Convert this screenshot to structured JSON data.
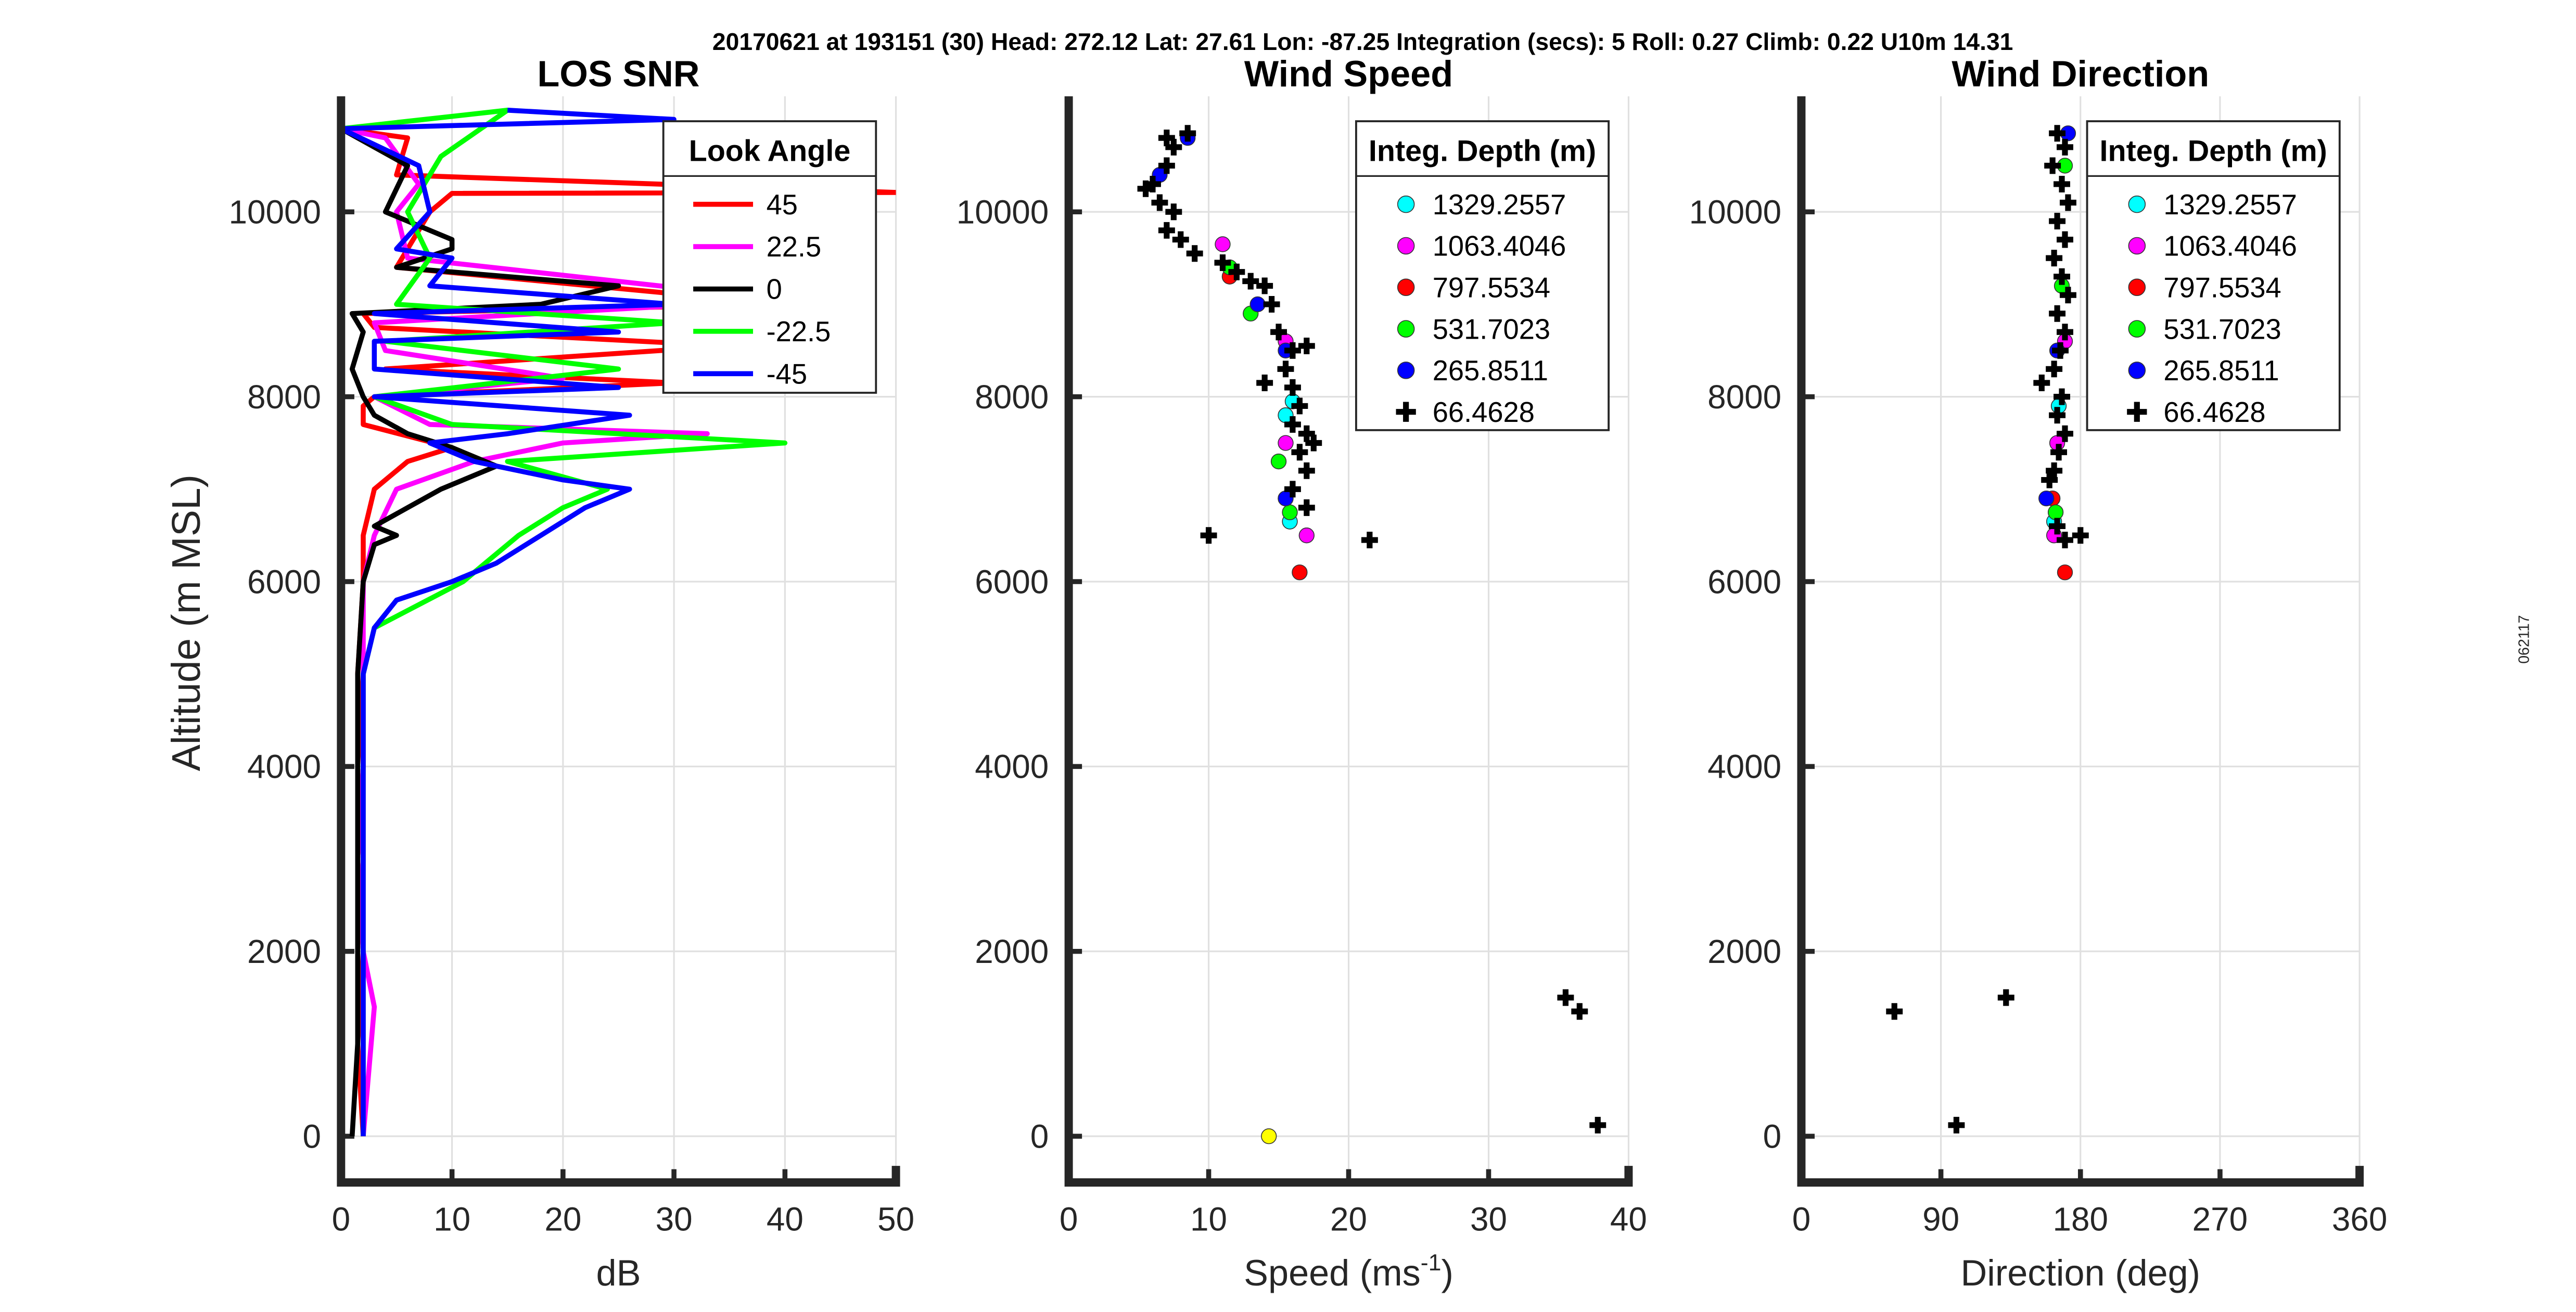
{
  "header": "20170621 at 193151 (30)  Head: 272.12  Lat: 27.61  Lon: -87.25  Integration (secs): 5  Roll: 0.27  Climb: 0.22  U10m 14.31",
  "side_label": "062117",
  "chart_data": [
    {
      "type": "line",
      "title": "LOS SNR",
      "xlabel": "dB",
      "ylabel": "Altitude (m MSL)",
      "xlim": [
        0,
        50
      ],
      "ylim": [
        -500,
        11250
      ],
      "xticks": [
        0,
        10,
        20,
        30,
        40,
        50
      ],
      "yticks": [
        0,
        2000,
        4000,
        6000,
        8000,
        10000
      ],
      "grid": true,
      "legend": {
        "title": "Look Angle",
        "placement": "top-right"
      },
      "series": [
        {
          "name": "45",
          "color": "#ff0000",
          "points": [
            [
              2,
              0
            ],
            [
              1.5,
              1000
            ],
            [
              2,
              2000
            ],
            [
              1.5,
              3000
            ],
            [
              2,
              4000
            ],
            [
              1.5,
              5000
            ],
            [
              2,
              6000
            ],
            [
              2,
              6500
            ],
            [
              3,
              7000
            ],
            [
              6,
              7300
            ],
            [
              10,
              7450
            ],
            [
              2,
              7700
            ],
            [
              2,
              7900
            ],
            [
              3,
              8000
            ],
            [
              30,
              8150
            ],
            [
              4,
              8300
            ],
            [
              35,
              8550
            ],
            [
              3,
              8750
            ],
            [
              2,
              8900
            ],
            [
              40,
              9000
            ],
            [
              5,
              9400
            ],
            [
              8,
              10000
            ],
            [
              10,
              10200
            ],
            [
              50,
              10210
            ],
            [
              5,
              10400
            ],
            [
              6,
              10800
            ],
            [
              0,
              10900
            ]
          ]
        },
        {
          "name": "22.5",
          "color": "#ff00ff",
          "points": [
            [
              2,
              0
            ],
            [
              3,
              1400
            ],
            [
              2,
              2000
            ],
            [
              1.5,
              3000
            ],
            [
              2,
              4000
            ],
            [
              2,
              5000
            ],
            [
              2,
              6000
            ],
            [
              3,
              6500
            ],
            [
              5,
              7000
            ],
            [
              12,
              7300
            ],
            [
              20,
              7500
            ],
            [
              33,
              7600
            ],
            [
              8,
              7700
            ],
            [
              3,
              8000
            ],
            [
              20,
              8200
            ],
            [
              4,
              8500
            ],
            [
              3,
              8800
            ],
            [
              40,
              9050
            ],
            [
              6,
              9500
            ],
            [
              5,
              10000
            ],
            [
              7,
              10300
            ],
            [
              4,
              10800
            ],
            [
              0,
              10900
            ]
          ]
        },
        {
          "name": "0",
          "color": "#000000",
          "points": [
            [
              1,
              0
            ],
            [
              1.5,
              1000
            ],
            [
              1.5,
              2000
            ],
            [
              1.5,
              3000
            ],
            [
              1.5,
              4000
            ],
            [
              1.5,
              5000
            ],
            [
              2,
              6000
            ],
            [
              3,
              6400
            ],
            [
              5,
              6500
            ],
            [
              3,
              6600
            ],
            [
              6,
              6800
            ],
            [
              9,
              7000
            ],
            [
              14,
              7250
            ],
            [
              10,
              7450
            ],
            [
              6,
              7600
            ],
            [
              3,
              7800
            ],
            [
              2,
              8000
            ],
            [
              1,
              8300
            ],
            [
              2,
              8700
            ],
            [
              1,
              8900
            ],
            [
              18,
              9000
            ],
            [
              25,
              9200
            ],
            [
              5,
              9400
            ],
            [
              10,
              9600
            ],
            [
              10,
              9700
            ],
            [
              4,
              10000
            ],
            [
              6,
              10500
            ],
            [
              0,
              10900
            ]
          ]
        },
        {
          "name": "-22.5",
          "color": "#00ff00",
          "points": [
            [
              2,
              0
            ],
            [
              2,
              1000
            ],
            [
              2,
              2000
            ],
            [
              2,
              3000
            ],
            [
              2,
              4000
            ],
            [
              2,
              5000
            ],
            [
              3,
              5500
            ],
            [
              11,
              6000
            ],
            [
              13,
              6200
            ],
            [
              16,
              6500
            ],
            [
              20,
              6800
            ],
            [
              24,
              7000
            ],
            [
              15,
              7300
            ],
            [
              40,
              7500
            ],
            [
              10,
              7700
            ],
            [
              3,
              8000
            ],
            [
              25,
              8300
            ],
            [
              4,
              8600
            ],
            [
              30,
              8800
            ],
            [
              5,
              9000
            ],
            [
              8,
              9500
            ],
            [
              6,
              10000
            ],
            [
              9,
              10600
            ],
            [
              15,
              11100
            ],
            [
              0,
              10900
            ]
          ]
        },
        {
          "name": "-45",
          "color": "#0000ff",
          "points": [
            [
              2,
              0
            ],
            [
              2,
              1000
            ],
            [
              2,
              2000
            ],
            [
              2,
              3000
            ],
            [
              2,
              4000
            ],
            [
              2,
              5000
            ],
            [
              3,
              5500
            ],
            [
              5,
              5800
            ],
            [
              10,
              6000
            ],
            [
              14,
              6200
            ],
            [
              18,
              6500
            ],
            [
              22,
              6800
            ],
            [
              26,
              7000
            ],
            [
              20,
              7100
            ],
            [
              12,
              7300
            ],
            [
              8,
              7500
            ],
            [
              15,
              7600
            ],
            [
              26,
              7800
            ],
            [
              3,
              8000
            ],
            [
              25,
              8100
            ],
            [
              3,
              8300
            ],
            [
              3,
              8600
            ],
            [
              25,
              8700
            ],
            [
              3,
              8900
            ],
            [
              30,
              9000
            ],
            [
              8,
              9200
            ],
            [
              10,
              9500
            ],
            [
              5,
              9600
            ],
            [
              8,
              10000
            ],
            [
              7,
              10500
            ],
            [
              0,
              10900
            ],
            [
              30,
              11000
            ],
            [
              15,
              11100
            ]
          ]
        }
      ]
    },
    {
      "type": "scatter",
      "title": "Wind Speed",
      "xlabel": "Speed (ms",
      "xlabel_sup": "-1",
      "xlabel_end": ")",
      "xlim": [
        0,
        40
      ],
      "ylim": [
        -500,
        11250
      ],
      "xticks": [
        0,
        10,
        20,
        30,
        40
      ],
      "yticks": [
        0,
        2000,
        4000,
        6000,
        8000,
        10000
      ],
      "grid": true,
      "legend": {
        "title": "Integ. Depth (m)",
        "placement": "top-right"
      },
      "series": [
        {
          "name": "1329.2557",
          "color": "#00ffff",
          "marker": "circle",
          "points": [
            [
              16,
              7950
            ],
            [
              15.8,
              6650
            ],
            [
              15.5,
              7800
            ]
          ]
        },
        {
          "name": "1063.4046",
          "color": "#ff00ff",
          "marker": "circle",
          "points": [
            [
              11,
              9650
            ],
            [
              17,
              6500
            ],
            [
              15.5,
              7500
            ],
            [
              15.5,
              8600
            ]
          ]
        },
        {
          "name": "797.5534",
          "color": "#ff0000",
          "marker": "circle",
          "points": [
            [
              16.5,
              6100
            ],
            [
              11.5,
              9300
            ],
            [
              15.5,
              6900
            ]
          ]
        },
        {
          "name": "531.7023",
          "color": "#00ff00",
          "marker": "circle",
          "points": [
            [
              11.5,
              9400
            ],
            [
              15,
              7300
            ],
            [
              15.8,
              6750
            ],
            [
              13,
              8900
            ]
          ]
        },
        {
          "name": "265.8511",
          "color": "#0000ff",
          "marker": "circle",
          "points": [
            [
              15.5,
              6900
            ],
            [
              13.5,
              9000
            ],
            [
              15.5,
              8500
            ],
            [
              8.5,
              10800
            ],
            [
              6.5,
              10400
            ]
          ]
        },
        {
          "name": "66.4628",
          "color": "#000000",
          "marker": "cross",
          "points": [
            [
              7,
              10800
            ],
            [
              8.5,
              10850
            ],
            [
              7.5,
              10700
            ],
            [
              7,
              10500
            ],
            [
              6,
              10300
            ],
            [
              5.5,
              10250
            ],
            [
              6.5,
              10100
            ],
            [
              7.5,
              10000
            ],
            [
              7,
              9800
            ],
            [
              8,
              9700
            ],
            [
              9,
              9550
            ],
            [
              11,
              9450
            ],
            [
              12,
              9350
            ],
            [
              13,
              9250
            ],
            [
              14,
              9200
            ],
            [
              14.5,
              9000
            ],
            [
              15,
              8700
            ],
            [
              16,
              8500
            ],
            [
              17,
              8550
            ],
            [
              15.5,
              8300
            ],
            [
              14,
              8150
            ],
            [
              16,
              8100
            ],
            [
              16.5,
              7900
            ],
            [
              16,
              7700
            ],
            [
              17,
              7600
            ],
            [
              17.5,
              7500
            ],
            [
              16.5,
              7400
            ],
            [
              17,
              7200
            ],
            [
              16,
              7000
            ],
            [
              17,
              6800
            ],
            [
              10,
              6500
            ],
            [
              21.5,
              6450
            ],
            [
              35.5,
              1500
            ],
            [
              36.5,
              1350
            ],
            [
              37.8,
              120
            ]
          ]
        },
        {
          "name": "",
          "color": "#ffff00",
          "marker": "circle",
          "points": [
            [
              14.3,
              0
            ]
          ]
        }
      ]
    },
    {
      "type": "scatter",
      "title": "Wind Direction",
      "xlabel": "Direction (deg)",
      "xlim": [
        0,
        360
      ],
      "ylim": [
        -500,
        11250
      ],
      "xticks": [
        0,
        90,
        180,
        270,
        360
      ],
      "yticks": [
        0,
        2000,
        4000,
        6000,
        8000,
        10000
      ],
      "grid": true,
      "legend": {
        "title": "Integ. Depth (m)",
        "placement": "top-right"
      },
      "series": [
        {
          "name": "1329.2557",
          "color": "#00ffff",
          "marker": "circle",
          "points": [
            [
              163,
              6650
            ],
            [
              166,
              7900
            ]
          ]
        },
        {
          "name": "1063.4046",
          "color": "#ff00ff",
          "marker": "circle",
          "points": [
            [
              163,
              6500
            ],
            [
              170,
              8600
            ],
            [
              165,
              7500
            ]
          ]
        },
        {
          "name": "797.5534",
          "color": "#ff0000",
          "marker": "circle",
          "points": [
            [
              170,
              6100
            ],
            [
              162,
              6900
            ]
          ]
        },
        {
          "name": "531.7023",
          "color": "#00ff00",
          "marker": "circle",
          "points": [
            [
              164,
              6750
            ],
            [
              170,
              10500
            ],
            [
              168,
              9200
            ]
          ]
        },
        {
          "name": "265.8511",
          "color": "#0000ff",
          "marker": "circle",
          "points": [
            [
              158,
              6900
            ],
            [
              172,
              10850
            ],
            [
              165,
              8500
            ]
          ]
        },
        {
          "name": "66.4628",
          "color": "#000000",
          "marker": "cross",
          "points": [
            [
              165,
              10850
            ],
            [
              170,
              10700
            ],
            [
              162,
              10500
            ],
            [
              168,
              10300
            ],
            [
              172,
              10100
            ],
            [
              165,
              9900
            ],
            [
              170,
              9700
            ],
            [
              163,
              9500
            ],
            [
              168,
              9300
            ],
            [
              172,
              9100
            ],
            [
              165,
              8900
            ],
            [
              170,
              8700
            ],
            [
              167,
              8500
            ],
            [
              163,
              8300
            ],
            [
              155,
              8150
            ],
            [
              168,
              8000
            ],
            [
              165,
              7800
            ],
            [
              170,
              7600
            ],
            [
              166,
              7400
            ],
            [
              163,
              7200
            ],
            [
              160,
              7100
            ],
            [
              165,
              6600
            ],
            [
              170,
              6450
            ],
            [
              180,
              6500
            ],
            [
              60,
              1350
            ],
            [
              132,
              1500
            ],
            [
              100,
              120
            ]
          ]
        }
      ]
    }
  ]
}
